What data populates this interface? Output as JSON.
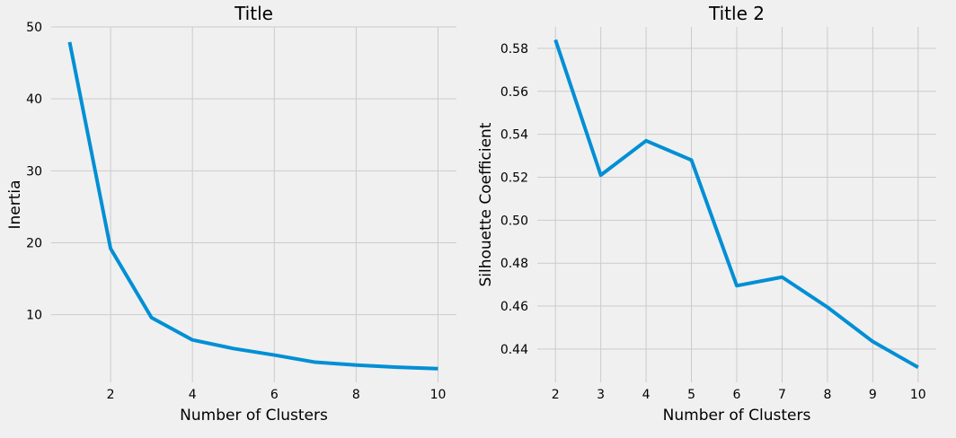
{
  "chart_data": [
    {
      "type": "line",
      "title": "Title",
      "xlabel": "Number of Clusters",
      "ylabel": "Inertia",
      "x": [
        1,
        2,
        3,
        4,
        5,
        6,
        7,
        8,
        9,
        10
      ],
      "series": [
        {
          "values": [
            47.9,
            19.2,
            9.6,
            6.5,
            5.3,
            4.4,
            3.4,
            3.0,
            2.7,
            2.5
          ]
        }
      ],
      "xlim": [
        0.55,
        10.45
      ],
      "ylim": [
        0.6,
        50
      ],
      "xticks": [
        2,
        4,
        6,
        8,
        10
      ],
      "yticks": [
        10,
        20,
        30,
        40,
        50
      ],
      "grid": true,
      "color": "#008fd5"
    },
    {
      "type": "line",
      "title": "Title 2",
      "xlabel": "Number of Clusters",
      "ylabel": "Silhouette Coefficient",
      "x": [
        2,
        3,
        4,
        5,
        6,
        7,
        8,
        9,
        10
      ],
      "series": [
        {
          "values": [
            0.584,
            0.521,
            0.537,
            0.528,
            0.4695,
            0.4735,
            0.4595,
            0.4435,
            0.4315
          ]
        }
      ],
      "xlim": [
        1.6,
        10.4
      ],
      "ylim": [
        0.4245,
        0.59
      ],
      "xticks": [
        2,
        3,
        4,
        5,
        6,
        7,
        8,
        9,
        10
      ],
      "yticks": [
        0.44,
        0.46,
        0.48,
        0.5,
        0.52,
        0.54,
        0.56,
        0.58
      ],
      "ytick_format": "0.00",
      "grid": true,
      "color": "#008fd5"
    }
  ]
}
